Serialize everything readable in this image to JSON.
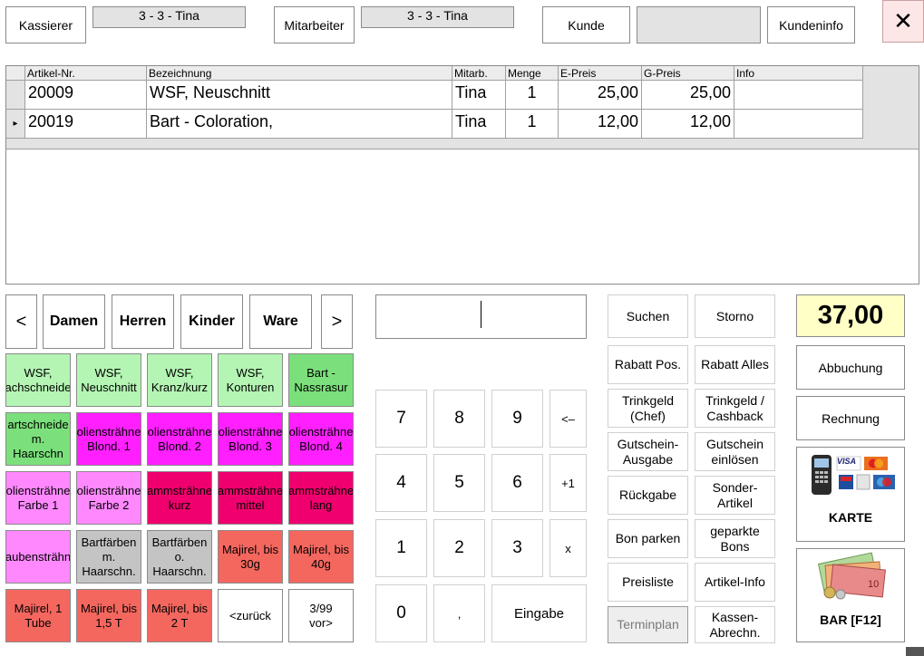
{
  "header": {
    "cashier_label": "Kassierer",
    "cashier_value": "3 -  3 - Tina",
    "employee_label": "Mitarbeiter",
    "employee_value": "3 -  3 - Tina",
    "customer_label": "Kunde",
    "customer_value": "",
    "customer_info_label": "Kundeninfo",
    "close_glyph": "✕"
  },
  "table": {
    "columns": [
      "Artikel-Nr.",
      "Bezeichnung",
      "Mitarb.",
      "Menge",
      "E-Preis",
      "G-Preis",
      "Info"
    ],
    "rows": [
      {
        "nr": "20009",
        "name": "WSF, Neuschnitt",
        "emp": "Tina",
        "qty": "1",
        "eprice": "25,00",
        "gprice": "25,00",
        "info": "",
        "current": ""
      },
      {
        "nr": "20019",
        "name": "Bart - Coloration,",
        "emp": "Tina",
        "qty": "1",
        "eprice": "12,00",
        "gprice": "12,00",
        "info": "",
        "current": "▸"
      }
    ]
  },
  "nav": {
    "prev": "<",
    "damen": "Damen",
    "herren": "Herren",
    "kinder": "Kinder",
    "ware": "Ware",
    "next": ">"
  },
  "tiles": [
    [
      "WSF,\nachschneide",
      "WSF,\nNeuschnitt",
      "WSF,\nKranz/kurz",
      "WSF,\nKonturen",
      "Bart -\nNassrasur"
    ],
    [
      "artschneide\nm.\nHaarschn",
      "oliensträhne\nBlond. 1",
      "oliensträhne\nBlond. 2",
      "oliensträhne\nBlond. 3",
      "oliensträhne\nBlond. 4"
    ],
    [
      "oliensträhne\nFarbe 1",
      "oliensträhne\nFarbe 2",
      "ammsträhne\nkurz",
      "ammsträhne\nmittel",
      "ammsträhne\nlang"
    ],
    [
      "aubensträhn",
      "Bartfärben\nm.\nHaarschn.",
      "Bartfärben\no.\nHaarschn.",
      "Majirel, bis\n30g",
      "Majirel, bis\n40g"
    ],
    [
      "Majirel, 1\nTube",
      "Majirel, bis\n1,5 T",
      "Majirel, bis\n2 T",
      "<zurück",
      "3/99\nvor>"
    ]
  ],
  "input": {
    "value": ""
  },
  "numpad": {
    "k7": "7",
    "k8": "8",
    "k9": "9",
    "back": "<–",
    "k4": "4",
    "k5": "5",
    "k6": "6",
    "plus1": "+1",
    "k1": "1",
    "k2": "2",
    "k3": "3",
    "times": "x",
    "k0": "0",
    "comma": ",",
    "enter": "Eingabe"
  },
  "functions": {
    "suchen": "Suchen",
    "storno": "Storno",
    "rabatt_pos": "Rabatt Pos.",
    "rabatt_alles": "Rabatt Alles",
    "trinkgeld_chef": "Trinkgeld\n(Chef)",
    "trinkgeld_cashback": "Trinkgeld /\nCashback",
    "gutschein_ausgabe": "Gutschein-\nAusgabe",
    "gutschein_einloesen": "Gutschein\neinlösen",
    "rueckgabe": "Rückgabe",
    "sonder_artikel": "Sonder-\nArtikel",
    "bon_parken": "Bon parken",
    "geparkte_bons": "geparkte\nBons",
    "preisliste": "Preisliste",
    "artikel_info": "Artikel-Info",
    "terminplan": "Terminplan",
    "kassen_abrechn": "Kassen-\nAbrechn."
  },
  "payment": {
    "total": "37,00",
    "abbuchung": "Abbuchung",
    "rechnung": "Rechnung",
    "karte": "KARTE",
    "bar": "BAR [F12]",
    "visa_text": "VISA"
  },
  "colors": {
    "light_green": "#b4f5b4",
    "green": "#7be07b",
    "magenta": "#ff1fff",
    "pink": "#ff88ff",
    "deep_pink": "#f0006e",
    "gray": "#c4c4c4",
    "salmon": "#f4675f",
    "total_bg": "#ffffc6"
  }
}
